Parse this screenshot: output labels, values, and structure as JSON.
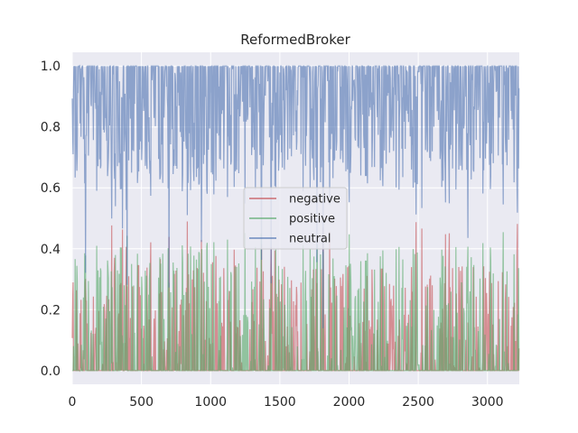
{
  "chart_data": {
    "type": "line",
    "title": "ReformedBroker",
    "xlabel": "",
    "ylabel": "",
    "xlim": [
      0,
      3230
    ],
    "ylim": [
      -0.045,
      1.045
    ],
    "xticks": [
      0,
      500,
      1000,
      1500,
      2000,
      2500,
      3000
    ],
    "yticks": [
      0.0,
      0.2,
      0.4,
      0.6,
      0.8,
      1.0
    ],
    "xtick_labels": [
      "0",
      "500",
      "1000",
      "1500",
      "2000",
      "2500",
      "3000"
    ],
    "ytick_labels": [
      "0.0",
      "0.2",
      "0.4",
      "0.6",
      "0.8",
      "1.0"
    ],
    "grid": true,
    "legend_position": "center",
    "n_points": 3230,
    "series": [
      {
        "name": "negative",
        "color": "#c44e52",
        "typical_range": [
          0,
          0.5
        ],
        "values": [
          0.0,
          0.0,
          0.12,
          0.0,
          0.0,
          0.08,
          0.0,
          0.5,
          0.0,
          0.0
        ]
      },
      {
        "name": "positive",
        "color": "#55a868",
        "typical_range": [
          0,
          0.46
        ],
        "values": [
          0.0,
          0.38,
          0.0,
          0.0,
          0.2,
          0.0,
          0.0,
          0.0,
          0.46,
          0.0
        ]
      },
      {
        "name": "neutral",
        "color": "#4c72b0",
        "typical_range": [
          0,
          1.0
        ],
        "values": [
          1.0,
          0.55,
          0.88,
          1.0,
          0.8,
          0.92,
          1.0,
          0.5,
          0.54,
          1.0
        ]
      }
    ]
  }
}
